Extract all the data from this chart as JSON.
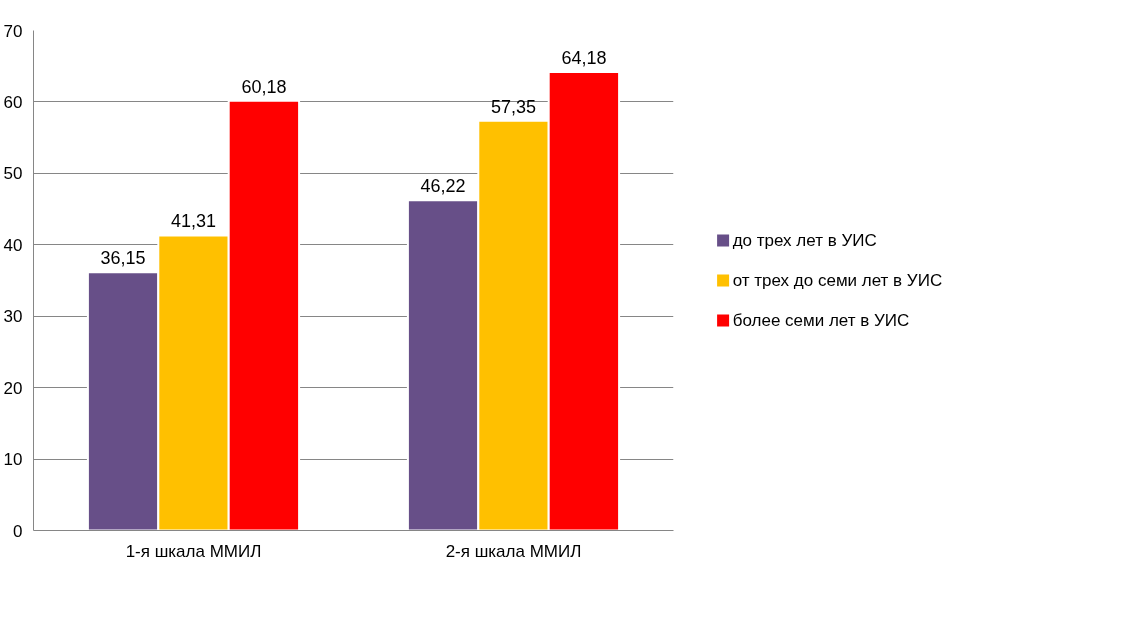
{
  "chart_data": {
    "type": "bar",
    "categories": [
      "1-я шкала ММИЛ",
      "2-я шкала ММИЛ"
    ],
    "series": [
      {
        "name": "до трех лет в УИС",
        "color": "#674f88",
        "values": [
          36.15,
          46.22
        ],
        "value_labels": [
          "36,15",
          "46,22"
        ]
      },
      {
        "name": "от трех до семи лет в УИС",
        "color": "#ffc000",
        "values": [
          41.31,
          57.35
        ],
        "value_labels": [
          "41,31",
          "57,35"
        ]
      },
      {
        "name": "более семи лет в УИС",
        "color": "#ff0000",
        "values": [
          60.18,
          64.18
        ],
        "value_labels": [
          "60,18",
          "64,18"
        ]
      }
    ],
    "ylim": [
      0,
      70
    ],
    "yticks": [
      0,
      10,
      20,
      30,
      40,
      50,
      60,
      70
    ],
    "grid": "y",
    "legend": "right"
  }
}
